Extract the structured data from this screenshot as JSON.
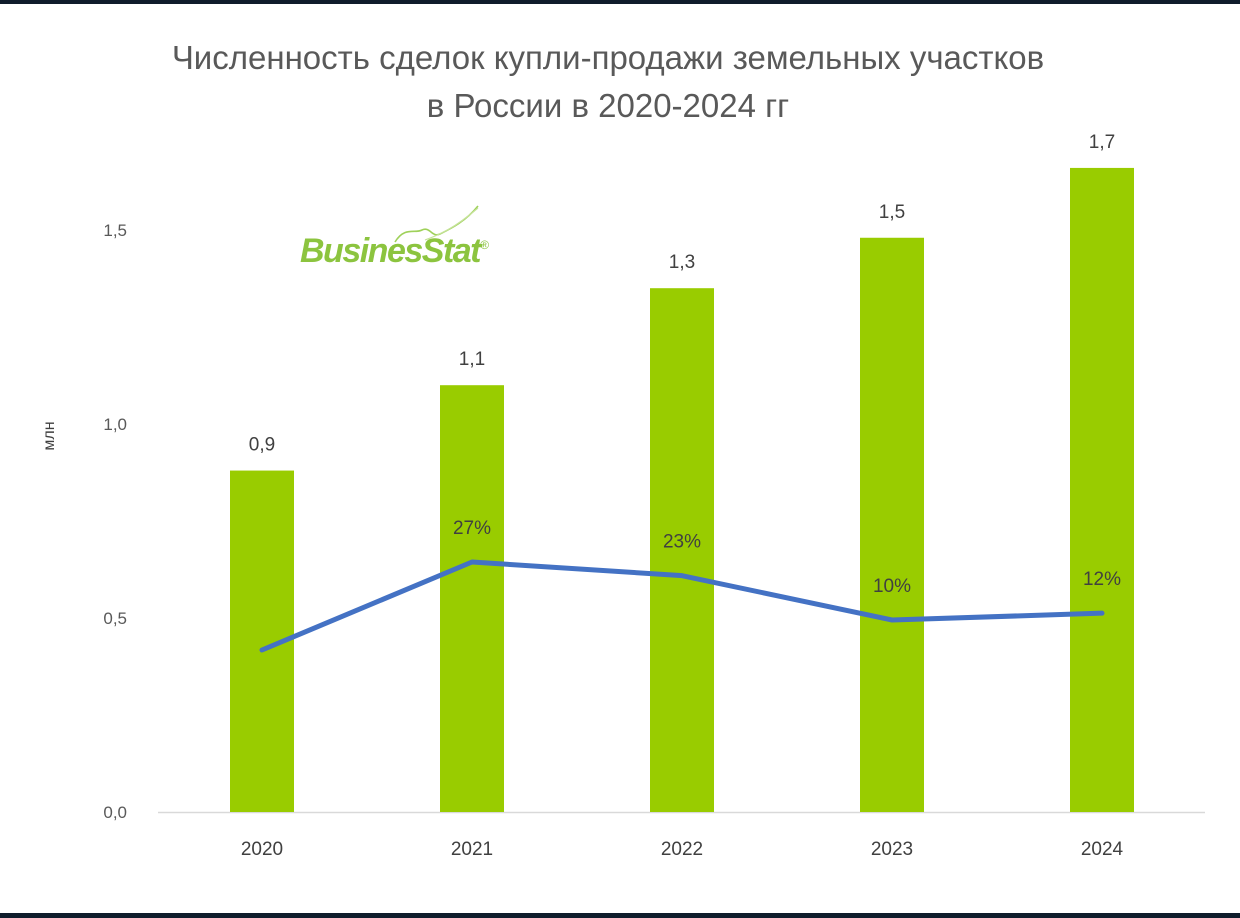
{
  "logo": {
    "text": "BusinesStat",
    "mark": "®"
  },
  "chart_data": {
    "type": "bar",
    "title_line1": "Численность сделок купли-продажи земельных участков",
    "title_line2": "в России в 2020-2024 гг",
    "ylabel": "млн",
    "ylim": [
      0,
      1.75
    ],
    "yticks": [
      {
        "value": 0.0,
        "label": "0,0"
      },
      {
        "value": 0.5,
        "label": "0,5"
      },
      {
        "value": 1.0,
        "label": "1,0"
      },
      {
        "value": 1.5,
        "label": "1,5"
      }
    ],
    "categories": [
      "2020",
      "2021",
      "2022",
      "2023",
      "2024"
    ],
    "series": [
      {
        "type": "bar",
        "color": "#99cc00",
        "values": [
          0.88,
          1.1,
          1.35,
          1.48,
          1.66
        ],
        "labels": [
          "0,9",
          "1,1",
          "1,3",
          "1,5",
          "1,7"
        ]
      },
      {
        "type": "line",
        "color": "#4472c4",
        "values": [
          null,
          27,
          23,
          10,
          12
        ],
        "labels": [
          "",
          "27%",
          "23%",
          "10%",
          "12%"
        ]
      }
    ]
  }
}
